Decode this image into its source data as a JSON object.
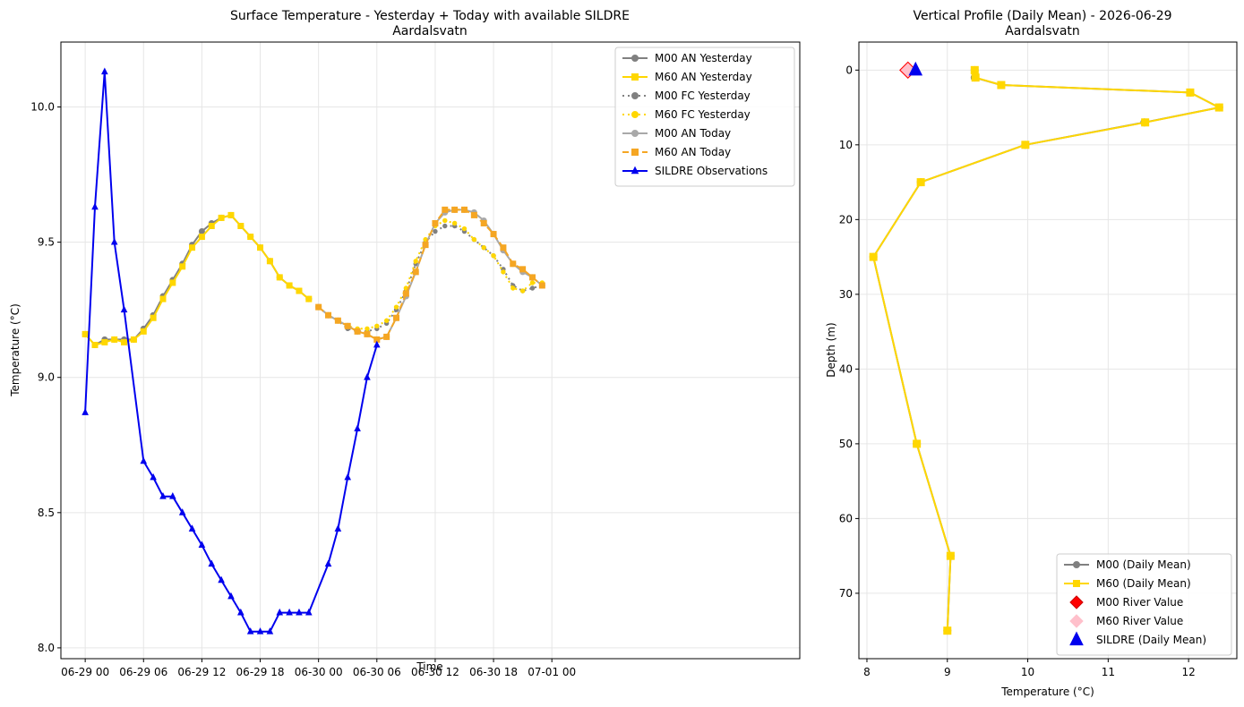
{
  "chart_data": [
    {
      "type": "line",
      "title": "Surface Temperature - Yesterday + Today with available SILDRE",
      "subtitle": "Aardalsvatn",
      "xlabel": "Time",
      "ylabel": "Temperature (°C)",
      "x_unit": "hours since 06-29 00",
      "xlim": [
        -2.5,
        73.5
      ],
      "ylim": [
        7.96,
        10.24
      ],
      "x_ticks": [
        0,
        6,
        12,
        18,
        24,
        30,
        36,
        42,
        48
      ],
      "x_tick_labels": [
        "06-29 00",
        "06-29 06",
        "06-29 12",
        "06-29 18",
        "06-30 00",
        "06-30 06",
        "06-30 12",
        "06-30 18",
        "07-01 00"
      ],
      "y_ticks": [
        8.0,
        8.5,
        9.0,
        9.5,
        10.0
      ],
      "y_tick_labels": [
        "8.0",
        "8.5",
        "9.0",
        "9.5",
        "10.0"
      ],
      "grid": true,
      "legend_position": "top-right",
      "series": [
        {
          "name": "M00 AN Yesterday",
          "color": "#808080",
          "dash": "solid",
          "marker": "circle",
          "x": [
            0,
            1,
            2,
            3,
            4,
            5,
            6,
            7,
            8,
            9,
            10,
            11,
            12,
            13,
            14,
            15,
            16,
            17,
            18,
            19,
            20,
            21,
            22,
            23
          ],
          "y": [
            9.16,
            9.12,
            9.14,
            9.14,
            9.14,
            9.14,
            9.18,
            9.23,
            9.3,
            9.36,
            9.42,
            9.49,
            9.54,
            9.57,
            9.59,
            9.6,
            9.56,
            9.52,
            9.48,
            9.43,
            9.37,
            9.34,
            9.32,
            9.29
          ]
        },
        {
          "name": "M60 AN Yesterday",
          "color": "#ffd700",
          "dash": "solid",
          "marker": "square",
          "x": [
            0,
            1,
            2,
            3,
            4,
            5,
            6,
            7,
            8,
            9,
            10,
            11,
            12,
            13,
            14,
            15,
            16,
            17,
            18,
            19,
            20,
            21,
            22,
            23
          ],
          "y": [
            9.16,
            9.12,
            9.13,
            9.14,
            9.13,
            9.14,
            9.17,
            9.22,
            9.29,
            9.35,
            9.41,
            9.48,
            9.52,
            9.56,
            9.59,
            9.6,
            9.56,
            9.52,
            9.48,
            9.43,
            9.37,
            9.34,
            9.32,
            9.29
          ]
        },
        {
          "name": "M00 FC Yesterday",
          "color": "#808080",
          "dash": "dotted",
          "marker": "circle",
          "x": [
            24,
            25,
            26,
            27,
            28,
            29,
            30,
            31,
            32,
            33,
            34,
            35,
            36,
            37,
            38,
            39,
            40,
            41,
            42,
            43,
            44,
            45,
            46,
            47
          ],
          "y": [
            9.26,
            9.23,
            9.21,
            9.18,
            9.17,
            9.17,
            9.18,
            9.2,
            9.25,
            9.32,
            9.42,
            9.5,
            9.54,
            9.56,
            9.56,
            9.54,
            9.51,
            9.48,
            9.45,
            9.4,
            9.34,
            9.32,
            9.33,
            9.34
          ]
        },
        {
          "name": "M60 FC Yesterday",
          "color": "#ffd700",
          "dash": "dotted",
          "marker": "circle",
          "x": [
            24,
            25,
            26,
            27,
            28,
            29,
            30,
            31,
            32,
            33,
            34,
            35,
            36,
            37,
            38,
            39,
            40,
            41,
            42,
            43,
            44,
            45,
            46,
            47
          ],
          "y": [
            9.26,
            9.23,
            9.21,
            9.19,
            9.18,
            9.18,
            9.19,
            9.21,
            9.26,
            9.33,
            9.43,
            9.51,
            9.56,
            9.58,
            9.57,
            9.55,
            9.51,
            9.48,
            9.45,
            9.39,
            9.33,
            9.32,
            9.35,
            9.35
          ]
        },
        {
          "name": "M00 AN Today",
          "color": "#a9a9a9",
          "dash": "solid",
          "marker": "circle",
          "x": [
            24,
            25,
            26,
            27,
            28,
            29,
            30,
            31,
            32,
            33,
            34,
            35,
            36,
            37,
            38,
            39,
            40,
            41,
            42,
            43,
            44,
            45,
            46,
            47
          ],
          "y": [
            9.26,
            9.23,
            9.21,
            9.19,
            9.17,
            9.16,
            9.14,
            9.15,
            9.22,
            9.3,
            9.39,
            9.49,
            9.57,
            9.61,
            9.62,
            9.62,
            9.61,
            9.58,
            9.53,
            9.47,
            9.42,
            9.39,
            9.37,
            9.34
          ]
        },
        {
          "name": "M60 AN Today",
          "color": "#f5a623",
          "dash": "dashed",
          "marker": "square",
          "x": [
            24,
            25,
            26,
            27,
            28,
            29,
            30,
            31,
            32,
            33,
            34,
            35,
            36,
            37,
            38,
            39,
            40,
            41,
            42,
            43,
            44,
            45,
            46,
            47
          ],
          "y": [
            9.26,
            9.23,
            9.21,
            9.19,
            9.17,
            9.16,
            9.14,
            9.15,
            9.22,
            9.31,
            9.39,
            9.49,
            9.57,
            9.62,
            9.62,
            9.62,
            9.6,
            9.57,
            9.53,
            9.48,
            9.42,
            9.4,
            9.37,
            9.34
          ]
        },
        {
          "name": "SILDRE Observations",
          "color": "#0000ee",
          "dash": "solid",
          "marker": "triangle",
          "x": [
            0,
            1,
            2,
            3,
            4,
            6,
            7,
            8,
            9,
            10,
            11,
            12,
            13,
            14,
            15,
            16,
            17,
            18,
            19,
            20,
            21,
            22,
            23,
            25,
            26,
            27,
            28,
            29,
            30
          ],
          "y": [
            8.87,
            9.63,
            10.13,
            9.5,
            9.25,
            8.69,
            8.63,
            8.56,
            8.56,
            8.5,
            8.44,
            8.38,
            8.31,
            8.25,
            8.19,
            8.13,
            8.06,
            8.06,
            8.06,
            8.13,
            8.13,
            8.13,
            8.13,
            8.31,
            8.44,
            8.63,
            8.81,
            9.0,
            9.12
          ]
        }
      ]
    },
    {
      "type": "line",
      "title": "Vertical Profile (Daily Mean) - 2026-06-29",
      "subtitle": "Aardalsvatn",
      "xlabel": "Temperature (°C)",
      "ylabel": "Depth (m)",
      "xlim": [
        7.9,
        12.6
      ],
      "ylim": [
        78.75,
        -3.75
      ],
      "y_inverted": true,
      "x_ticks": [
        8,
        9,
        10,
        11,
        12
      ],
      "x_tick_labels": [
        "8",
        "9",
        "10",
        "11",
        "12"
      ],
      "y_ticks": [
        0,
        10,
        20,
        30,
        40,
        50,
        60,
        70
      ],
      "y_tick_labels": [
        "0",
        "10",
        "20",
        "30",
        "40",
        "50",
        "60",
        "70"
      ],
      "grid": true,
      "legend_position": "bottom-right",
      "series": [
        {
          "name": "M00 (Daily Mean)",
          "color": "#808080",
          "marker": "circle",
          "depth": [
            0,
            1,
            2,
            3,
            5,
            7,
            10,
            15,
            25,
            50,
            65,
            75
          ],
          "temp": [
            9.34,
            9.34,
            9.67,
            12.02,
            12.38,
            11.45,
            9.97,
            8.67,
            8.08,
            8.62,
            9.04,
            9.0
          ]
        },
        {
          "name": "M60 (Daily Mean)",
          "color": "#ffd700",
          "marker": "square",
          "depth": [
            0,
            1,
            2,
            3,
            5,
            7,
            10,
            15,
            25,
            50,
            65,
            75
          ],
          "temp": [
            9.34,
            9.35,
            9.67,
            12.02,
            12.38,
            11.46,
            9.97,
            8.67,
            8.08,
            8.62,
            9.04,
            9.0
          ]
        },
        {
          "name": "M00 River Value",
          "color": "#ff0000",
          "marker": "diamond",
          "depth": [
            0
          ],
          "temp": [
            8.51
          ]
        },
        {
          "name": "M60 River Value",
          "color": "#ffc0cb",
          "marker": "diamond",
          "depth": [
            0
          ],
          "temp": [
            8.51
          ]
        },
        {
          "name": "SILDRE (Daily Mean)",
          "color": "#0000ee",
          "marker": "triangle",
          "depth": [
            0
          ],
          "temp": [
            8.56
          ]
        }
      ]
    }
  ]
}
